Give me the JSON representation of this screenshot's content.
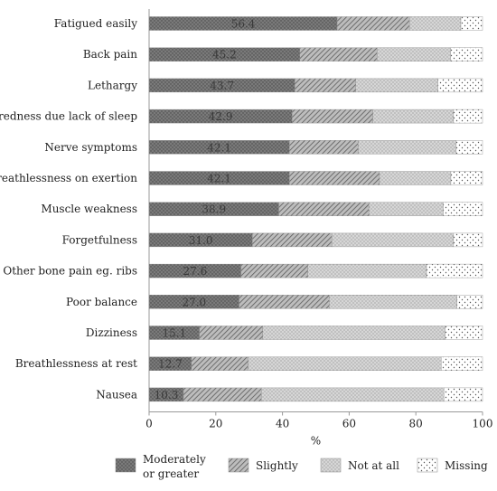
{
  "chart_data": {
    "type": "bar",
    "orientation": "horizontal",
    "stacked": true,
    "xlabel": "%",
    "xlim": [
      0,
      100
    ],
    "xticks": [
      "0",
      "20",
      "40",
      "60",
      "80",
      "100"
    ],
    "grid": false,
    "legend_position": "bottom",
    "categories": [
      "Fatigued easily",
      "Back pain",
      "Lethargy",
      "Tiredness due lack of sleep",
      "Nerve symptoms",
      "Breathlessness on exertion",
      "Muscle weakness",
      "Forgetfulness",
      "Other bone pain eg. ribs",
      "Poor balance",
      "Dizziness",
      "Breathlessness at rest",
      "Nausea"
    ],
    "series": [
      {
        "name": "Moderately or greater",
        "legend_lines": [
          "Moderately",
          "or greater"
        ],
        "pattern": "dense-dots",
        "values": [
          56.4,
          45.2,
          43.7,
          42.9,
          42.1,
          42.1,
          38.9,
          31.0,
          27.6,
          27.0,
          15.1,
          12.7,
          10.3
        ],
        "labels": [
          "56.4",
          "45.2",
          "43.7",
          "42.9",
          "42.1",
          "42.1",
          "38.9",
          "31.0",
          "27.6",
          "27.0",
          "15.1",
          "12.7",
          "10.3"
        ]
      },
      {
        "name": "Slightly",
        "pattern": "diagonal",
        "values": [
          21.7,
          23.2,
          18.3,
          24.2,
          20.6,
          27.0,
          27.0,
          23.8,
          20.0,
          27.0,
          19.0,
          17.0,
          23.4
        ]
      },
      {
        "name": "Not at all",
        "pattern": "light-dots",
        "values": [
          15.4,
          22.0,
          24.6,
          24.2,
          29.4,
          21.4,
          22.3,
          36.5,
          35.6,
          38.3,
          54.7,
          57.9,
          54.7
        ]
      },
      {
        "name": "Missing",
        "pattern": "sparse-dots",
        "values": [
          6.5,
          9.6,
          13.4,
          8.7,
          7.9,
          9.5,
          11.8,
          8.7,
          16.8,
          7.7,
          11.2,
          12.4,
          11.6
        ]
      }
    ]
  }
}
